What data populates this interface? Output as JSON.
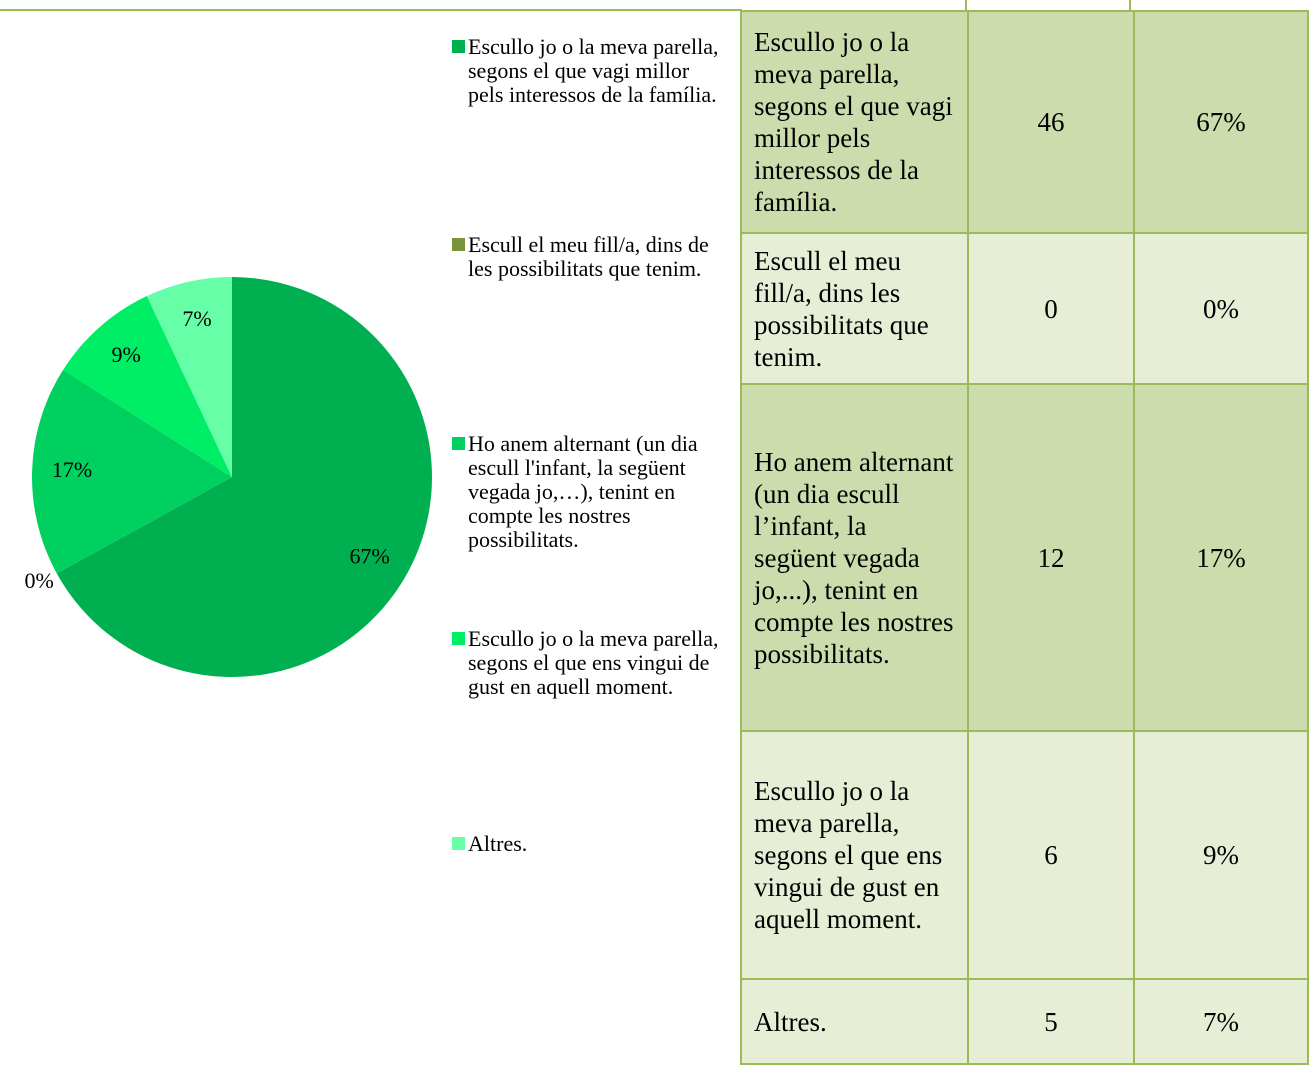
{
  "chart_data": {
    "type": "pie",
    "categories": [
      "Escullo jo o la meva parella, segons el que vagi millor pels interessos de la família.",
      "Escull el meu fill/a, dins de les possibilitats que tenim.",
      "Ho anem alternant (un dia escull l'infant, la següent vegada jo,…), tenint en compte les nostres possibilitats.",
      "Escullo jo o la meva parella, segons el que ens vingui de gust en aquell moment.",
      "Altres."
    ],
    "values": [
      67,
      0,
      17,
      9,
      7
    ],
    "value_labels": [
      "67%",
      "0%",
      "17%",
      "9%",
      "7%"
    ],
    "colors": [
      "#00b050",
      "#77933c",
      "#00d060",
      "#00ee66",
      "#66ffa8"
    ]
  },
  "table": {
    "rows": [
      [
        "Escullo jo o la meva parella, segons el que vagi millor pels interessos de la família.",
        46,
        "67%"
      ],
      [
        "Escull el meu fill/a, dins les possibilitats que tenim.",
        0,
        "0%"
      ],
      [
        "Ho anem alternant (un dia escull l’infant, la següent vegada jo,...), tenint en compte les nostres possibilitats.",
        12,
        "17%"
      ],
      [
        "Escullo jo o la meva parella, segons el que ens vingui de gust en aquell moment.",
        6,
        "9%"
      ],
      [
        "Altres.",
        5,
        "7%"
      ]
    ]
  }
}
